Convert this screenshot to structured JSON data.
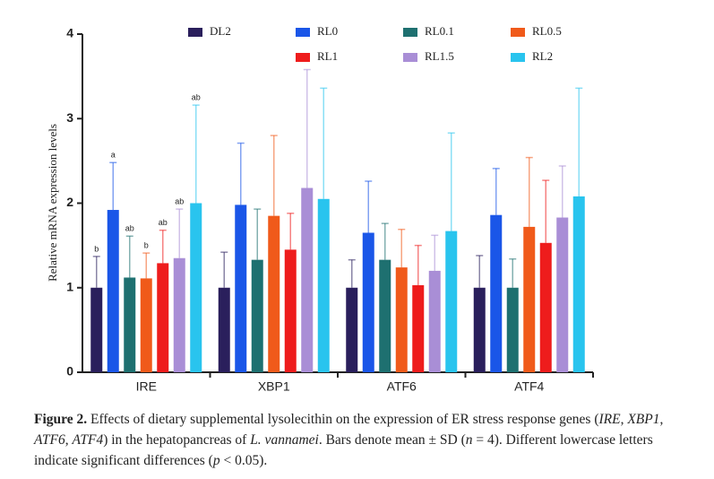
{
  "chart_data": {
    "type": "bar",
    "y_label": "Relative mRNA expression levels",
    "categories": [
      "IRE",
      "XBP1",
      "ATF6",
      "ATF4"
    ],
    "ylim": [
      0,
      4
    ],
    "yticks": [
      0,
      1,
      2,
      3,
      4
    ],
    "series": [
      {
        "name": "DL2",
        "color": "#2a1f5c",
        "values": [
          1.0,
          1.0,
          1.0,
          1.0
        ],
        "errors": [
          0.37,
          0.42,
          0.33,
          0.38
        ],
        "letters": [
          "b",
          null,
          null,
          null
        ]
      },
      {
        "name": "RL0",
        "color": "#1a56e8",
        "values": [
          1.92,
          1.98,
          1.65,
          1.86
        ],
        "errors": [
          0.56,
          0.73,
          0.61,
          0.55
        ],
        "letters": [
          "a",
          null,
          null,
          null
        ]
      },
      {
        "name": "RL0.1",
        "color": "#1e7070",
        "values": [
          1.12,
          1.33,
          1.33,
          1.0
        ],
        "errors": [
          0.49,
          0.6,
          0.43,
          0.34
        ],
        "letters": [
          "ab",
          null,
          null,
          null
        ]
      },
      {
        "name": "RL0.5",
        "color": "#f05a1a",
        "values": [
          1.11,
          1.85,
          1.24,
          1.72
        ],
        "errors": [
          0.3,
          0.95,
          0.45,
          0.82
        ],
        "letters": [
          "b",
          null,
          null,
          null
        ]
      },
      {
        "name": "RL1",
        "color": "#ee1c1c",
        "values": [
          1.29,
          1.45,
          1.03,
          1.53
        ],
        "errors": [
          0.39,
          0.43,
          0.47,
          0.74
        ],
        "letters": [
          "ab",
          null,
          null,
          null
        ]
      },
      {
        "name": "RL1.5",
        "color": "#a98ed6",
        "values": [
          1.35,
          2.18,
          1.2,
          1.83
        ],
        "errors": [
          0.58,
          1.4,
          0.42,
          0.61
        ],
        "letters": [
          "ab",
          null,
          null,
          null
        ]
      },
      {
        "name": "RL2",
        "color": "#29c4ee",
        "values": [
          2.0,
          2.05,
          1.67,
          2.08
        ],
        "errors": [
          1.16,
          1.31,
          1.16,
          1.28
        ],
        "letters": [
          "ab",
          null,
          null,
          null
        ]
      }
    ]
  },
  "caption": [
    "Figure 2.",
    " Effects of dietary supplemental lysolecithin on the expression of ER stress response genes (",
    "IRE",
    ", ",
    "XBP1",
    ", ",
    "ATF6",
    ", ",
    "ATF4",
    ") in the hepatopancreas of ",
    "L. vannamei",
    ".  Bars denote mean ± SD (",
    "n",
    " = 4). Different lowercase letters indicate significant differences (",
    "p",
    " < 0.05)."
  ]
}
